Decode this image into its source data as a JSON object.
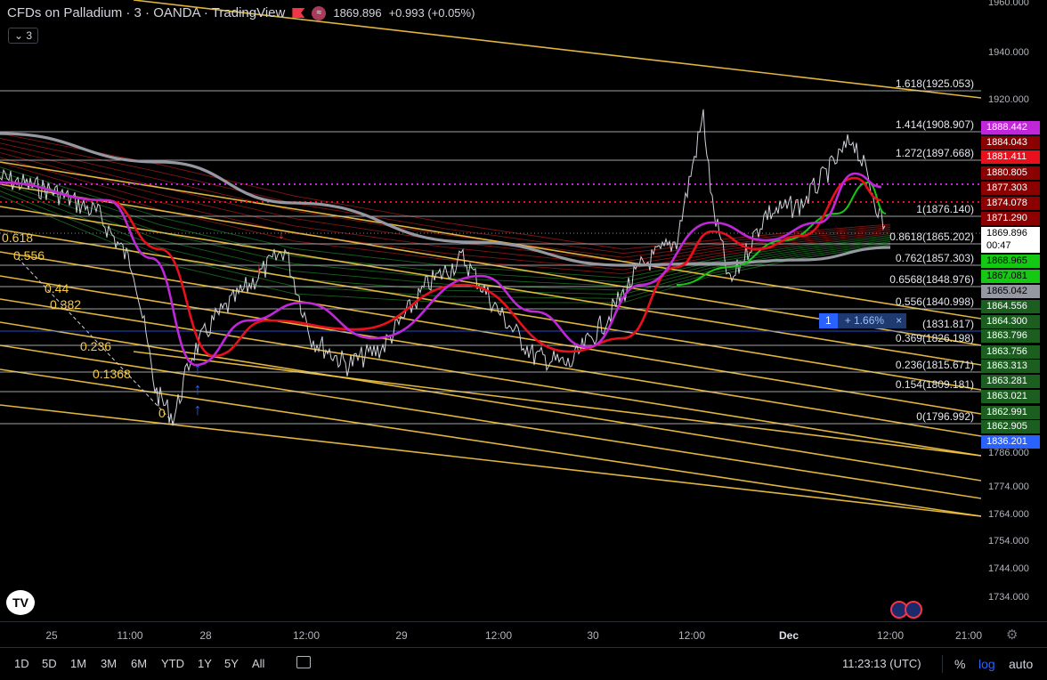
{
  "header": {
    "symbol_title": "CFDs on Palladium · 3 · OANDA · TradingView",
    "last_price": "1869.896",
    "change": "+0.993 (+0.05%)",
    "indicators_count": "3",
    "accent_up": "#089981",
    "accent_down": "#f23645"
  },
  "icons": {
    "logo": "tradingview-logo-icon",
    "flag": "red-flag-icon",
    "alert": "indicator-round-icon",
    "settings": "gear-icon",
    "compare": "compare-icon",
    "events": "economic-event-flag-icon"
  },
  "logo_text": "TV",
  "price_axis": {
    "ticks": [
      "1960.000",
      "1940.000",
      "1920.000",
      "1786.000",
      "1774.000",
      "1764.000",
      "1754.000",
      "1744.000",
      "1734.000"
    ],
    "labels": [
      {
        "text": "1888.442",
        "color": "#c027d9"
      },
      {
        "text": "1884.043",
        "color": "#8b0000"
      },
      {
        "text": "1881.411",
        "color": "#e8101c"
      },
      {
        "text": "1880.805",
        "color": "#8b0000"
      },
      {
        "text": "1877.303",
        "color": "#8b0000"
      },
      {
        "text": "1874.078",
        "color": "#8b0000"
      },
      {
        "text": "1871.290",
        "color": "#8b0000"
      },
      {
        "text": "1869.896",
        "color": "#ffffff",
        "text_color": "#000000"
      },
      {
        "text": "00:47",
        "color": "#ffffff",
        "text_color": "#000000"
      },
      {
        "text": "1868.965",
        "color": "#14c814",
        "text_color": "#000000"
      },
      {
        "text": "1867.081",
        "color": "#14c814",
        "text_color": "#000000"
      },
      {
        "text": "1865.042",
        "color": "#9598a1",
        "text_color": "#000000"
      },
      {
        "text": "1864.556",
        "color": "#1b5e20"
      },
      {
        "text": "1864.300",
        "color": "#1b5e20"
      },
      {
        "text": "1863.796",
        "color": "#1b5e20"
      },
      {
        "text": "1863.756",
        "color": "#1b5e20"
      },
      {
        "text": "1863.313",
        "color": "#1b5e20"
      },
      {
        "text": "1863.281",
        "color": "#1b5e20"
      },
      {
        "text": "1863.021",
        "color": "#1b5e20"
      },
      {
        "text": "1862.991",
        "color": "#1b5e20"
      },
      {
        "text": "1862.905",
        "color": "#1b5e20"
      },
      {
        "text": "1836.201",
        "color": "#2962ff"
      }
    ]
  },
  "fib_levels": [
    {
      "label": "1.618(1925.053)"
    },
    {
      "label": "1.414(1908.907)"
    },
    {
      "label": "1.272(1897.668)"
    },
    {
      "label": "1(1876.140)"
    },
    {
      "label": "0.8618(1865.202)"
    },
    {
      "label": "0.762(1857.303)"
    },
    {
      "label": "0.6568(1848.976)"
    },
    {
      "label": "0.556(1840.998)"
    },
    {
      "label": "(1831.817)"
    },
    {
      "label": "0.369(1826.198)"
    },
    {
      "label": "0.236(1815.671)"
    },
    {
      "label": "0.154(1809.181)"
    },
    {
      "label": "0(1796.992)"
    }
  ],
  "left_fib_labels": [
    "0.618",
    "0.556",
    "0.44",
    "0.382",
    "0.236",
    "0.1368",
    "0"
  ],
  "position_line": {
    "qty": "1",
    "pnl": "+ 1.66%",
    "close": "×"
  },
  "time_axis": {
    "ticks": [
      "25",
      "11:00",
      "28",
      "12:00",
      "29",
      "12:00",
      "30",
      "12:00",
      "Dec",
      "12:00",
      "21:00"
    ]
  },
  "bottom_bar": {
    "ranges": [
      "1D",
      "5D",
      "1M",
      "3M",
      "6M",
      "YTD",
      "1Y",
      "5Y",
      "All"
    ],
    "clock": "11:23:13 (UTC)",
    "percent": "%",
    "log": "log",
    "auto": "auto"
  }
}
